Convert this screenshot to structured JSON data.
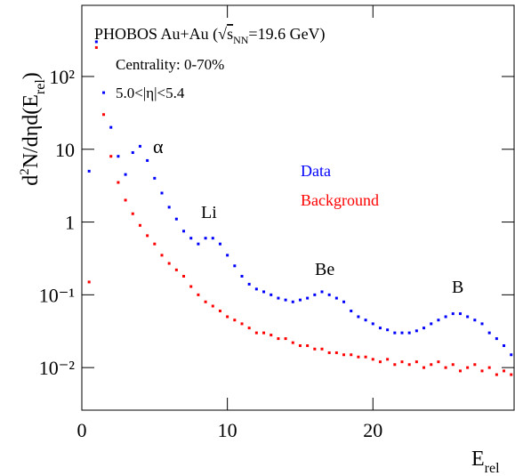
{
  "chart_data": {
    "type": "scatter",
    "title_parts": {
      "prefix": "PHOBOS Au+Au (√",
      "s": "s",
      "sub": "NN",
      "suffix": "=19.6 GeV)"
    },
    "annotations": [
      "Centrality: 0-70%",
      "5.0<|η|<5.4",
      "α",
      "Li",
      "Be",
      "B"
    ],
    "xlabel": {
      "main": "E",
      "sub": "rel"
    },
    "ylabel": {
      "d": "d",
      "sup": "2",
      "mid": "N/dηd(E",
      "sub": "rel",
      "end": ")"
    },
    "log_y": true,
    "xlim": [
      0,
      29.7
    ],
    "ylim": [
      0.0026,
      950
    ],
    "xticks": [
      0,
      10,
      20
    ],
    "yticks": [
      {
        "value": 0.01,
        "label": "10⁻²"
      },
      {
        "value": 0.1,
        "label": "10⁻¹"
      },
      1,
      10,
      {
        "value": 100,
        "label": "10²"
      }
    ],
    "x": [
      0.5,
      1,
      1.5,
      2,
      2.5,
      3,
      3.5,
      4,
      4.5,
      5,
      5.5,
      6,
      6.5,
      7,
      7.5,
      8,
      8.5,
      9,
      9.5,
      10,
      10.5,
      11,
      11.5,
      12,
      12.5,
      13,
      13.5,
      14,
      14.5,
      15,
      15.5,
      16,
      16.5,
      17,
      17.5,
      18,
      18.5,
      19,
      19.5,
      20,
      20.5,
      21,
      21.5,
      22,
      22.5,
      23,
      23.5,
      24,
      24.5,
      25,
      25.5,
      26,
      26.5,
      27,
      27.5,
      28,
      28.5,
      29,
      29.5
    ],
    "series": [
      {
        "name": "Data",
        "color": "#0000ff",
        "values": [
          5,
          300,
          60,
          20,
          8,
          4.5,
          9,
          11,
          7,
          4,
          2.5,
          1.6,
          1.1,
          0.75,
          0.6,
          0.5,
          0.6,
          0.6,
          0.5,
          0.35,
          0.25,
          0.18,
          0.14,
          0.12,
          0.11,
          0.1,
          0.09,
          0.085,
          0.08,
          0.085,
          0.09,
          0.1,
          0.11,
          0.1,
          0.09,
          0.08,
          0.06,
          0.05,
          0.045,
          0.04,
          0.035,
          0.033,
          0.03,
          0.03,
          0.03,
          0.032,
          0.035,
          0.04,
          0.045,
          0.05,
          0.055,
          0.055,
          0.05,
          0.045,
          0.04,
          0.03,
          0.025,
          0.02,
          0.015
        ]
      },
      {
        "name": "Background",
        "color": "#ff0000",
        "values": [
          0.15,
          250,
          30,
          8,
          3.5,
          2,
          1.3,
          0.9,
          0.65,
          0.5,
          0.35,
          0.27,
          0.22,
          0.18,
          0.13,
          0.1,
          0.08,
          0.07,
          0.06,
          0.05,
          0.045,
          0.04,
          0.035,
          0.03,
          0.03,
          0.028,
          0.025,
          0.025,
          0.022,
          0.02,
          0.02,
          0.018,
          0.018,
          0.016,
          0.016,
          0.015,
          0.015,
          0.014,
          0.014,
          0.013,
          0.012,
          0.013,
          0.011,
          0.012,
          0.011,
          0.012,
          0.01,
          0.011,
          0.012,
          0.01,
          0.011,
          0.009,
          0.01,
          0.011,
          0.009,
          0.01,
          0.008,
          0.009,
          0.008
        ]
      }
    ]
  }
}
